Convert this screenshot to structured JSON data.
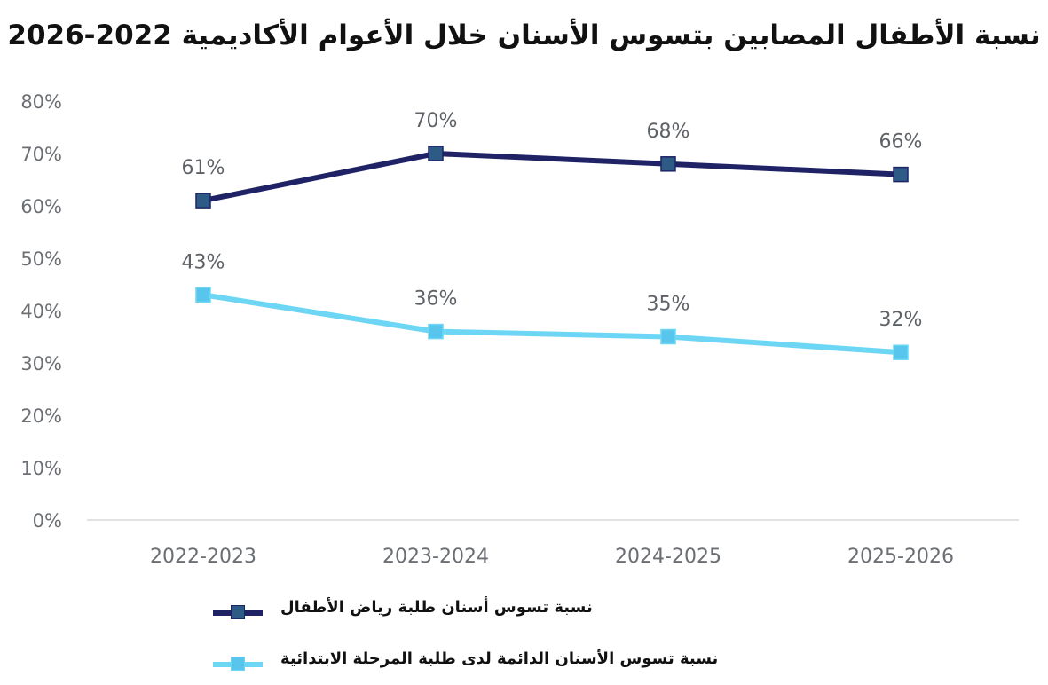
{
  "chart_data": {
    "type": "line",
    "title": "نسبة الأطفال المصابين بتسوس الأسنان خلال الأعوام الأكاديمية 2022-2026",
    "xlabel": "",
    "ylabel": "",
    "categories": [
      "2022-2023",
      "2023-2024",
      "2024-2025",
      "2025-2026"
    ],
    "ylim": [
      0,
      80
    ],
    "yticks": [
      0,
      10,
      20,
      30,
      40,
      50,
      60,
      70,
      80
    ],
    "ytick_labels": [
      "0%",
      "10%",
      "20%",
      "30%",
      "40%",
      "50%",
      "60%",
      "70%",
      "80%"
    ],
    "grid": false,
    "legend_position": "bottom-left",
    "series": [
      {
        "name": "نسبة تسوس أسنان طلبة رياض الأطفال",
        "values": [
          61,
          70,
          68,
          66
        ],
        "data_labels": [
          "61%",
          "70%",
          "68%",
          "66%"
        ],
        "color": "#1f2366",
        "marker_color": "#2e5a86"
      },
      {
        "name": "نسبة تسوس الأسنان الدائمة لدى طلبة المرحلة الابتدائية",
        "values": [
          43,
          36,
          35,
          32
        ],
        "data_labels": [
          "43%",
          "36%",
          "35%",
          "32%"
        ],
        "color": "#6cd6f4",
        "marker_color": "#58c6ec"
      }
    ]
  }
}
